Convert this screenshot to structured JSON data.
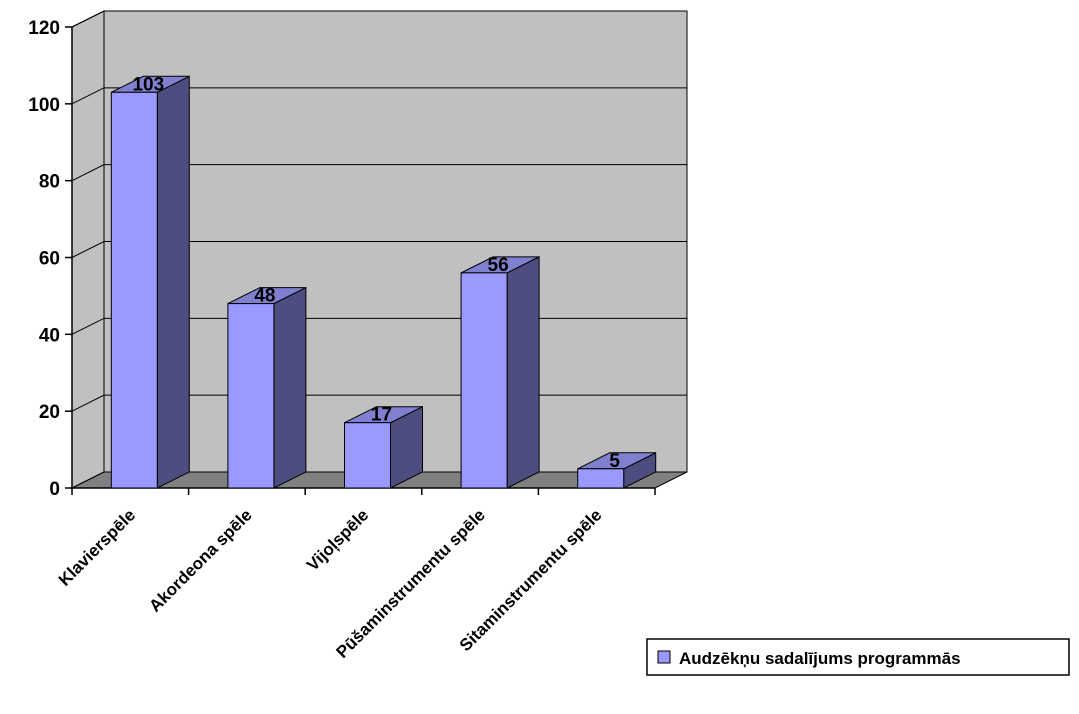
{
  "chart_data": {
    "type": "bar",
    "title": "",
    "xlabel": "",
    "ylabel": "",
    "categories": [
      "Klavierspēle",
      "Akordeona spēle",
      "Vijoļspēle",
      "Pūšaminstrumentu spēle",
      "Sitaminstrumentu spēle"
    ],
    "series": [
      {
        "name": "Audzēkņu sadalījums programmās",
        "values": [
          103,
          48,
          17,
          56,
          5
        ]
      }
    ],
    "ylim": [
      0,
      120
    ],
    "yticks": [
      0,
      20,
      40,
      60,
      80,
      100,
      120
    ],
    "grid": true,
    "data_labels": true,
    "legend_position": "bottom-right",
    "style_3d": true,
    "colors": {
      "bar_front": "#9999ff",
      "bar_side": "#4d4d80",
      "bar_top": "#8080d0",
      "wall": "#c0c0c0",
      "floor": "#808080",
      "grid": "#000000"
    }
  }
}
